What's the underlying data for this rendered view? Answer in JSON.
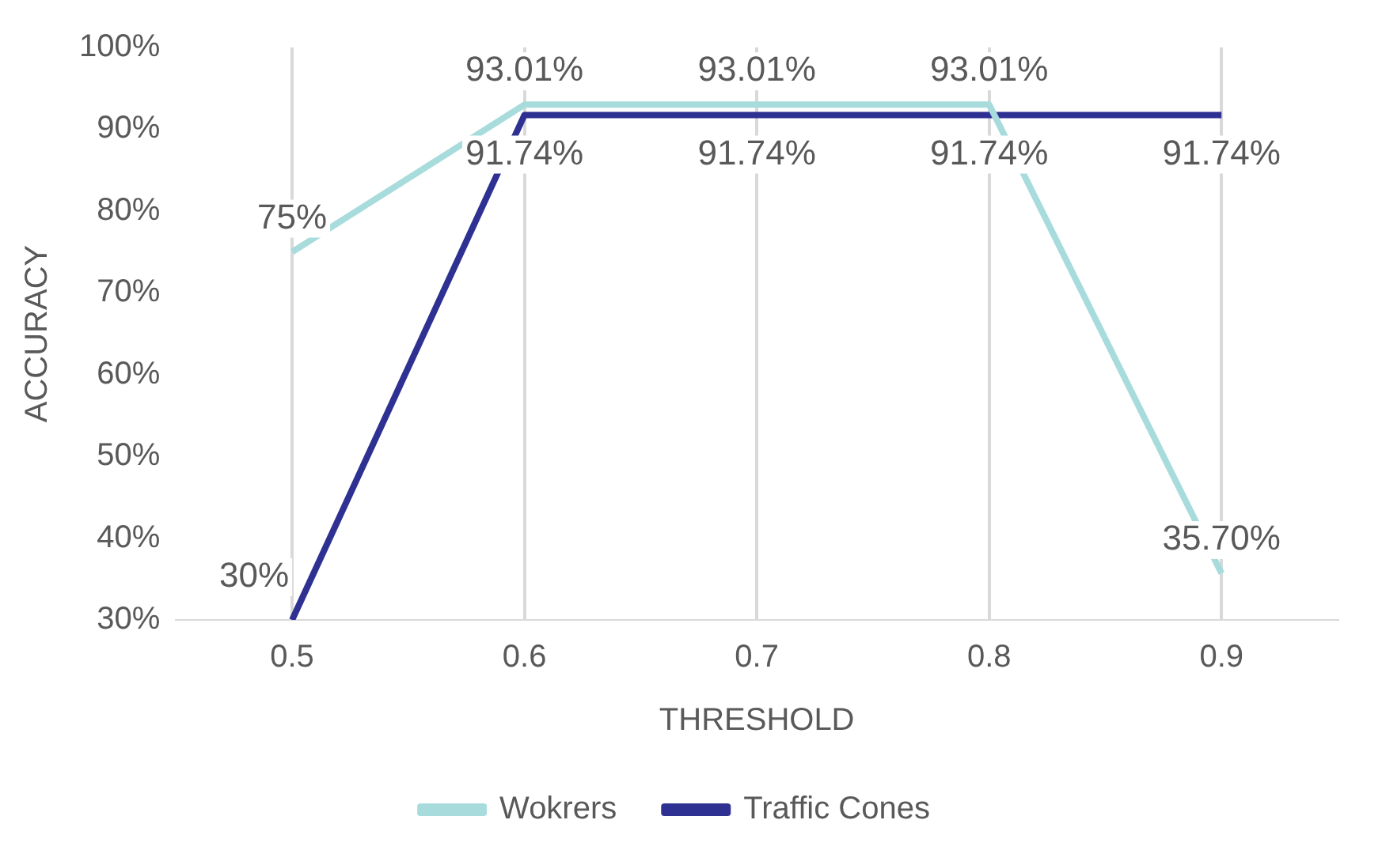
{
  "chart_data": {
    "type": "line",
    "xlabel": "THRESHOLD",
    "ylabel": "ACCURACY",
    "categories": [
      "0.5",
      "0.6",
      "0.7",
      "0.8",
      "0.9"
    ],
    "series": [
      {
        "name": "Wokrers",
        "color": "#a8dcdc",
        "values": [
          75,
          93.01,
          93.01,
          93.01,
          35.7
        ],
        "value_labels": [
          "75%",
          "93.01%",
          "93.01%",
          "93.01%",
          "35.70%"
        ]
      },
      {
        "name": "Traffic Cones",
        "color": "#2e3192",
        "values": [
          30,
          91.74,
          91.74,
          91.74,
          91.74
        ],
        "value_labels": [
          "30%",
          "91.74%",
          "91.74%",
          "91.74%",
          "91.74%"
        ]
      }
    ],
    "ylim": [
      30,
      100
    ],
    "yticks": [
      {
        "value": 30,
        "label": "30%"
      },
      {
        "value": 40,
        "label": "40%"
      },
      {
        "value": 50,
        "label": "50%"
      },
      {
        "value": 60,
        "label": "60%"
      },
      {
        "value": 70,
        "label": "70%"
      },
      {
        "value": 80,
        "label": "80%"
      },
      {
        "value": 90,
        "label": "90%"
      },
      {
        "value": 100,
        "label": "100%"
      }
    ],
    "grid": "x",
    "legend": "bottom",
    "marker": "none",
    "line_style": "solid"
  }
}
